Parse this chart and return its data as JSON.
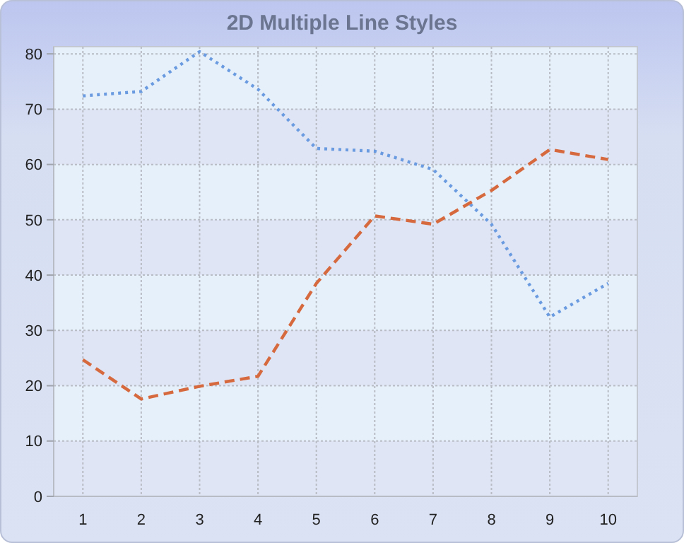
{
  "chart_data": {
    "type": "line",
    "title": "2D Multiple Line Styles",
    "categories": [
      "1",
      "2",
      "3",
      "4",
      "5",
      "6",
      "7",
      "8",
      "9",
      "10"
    ],
    "series": [
      {
        "color": "#6a9be0",
        "line_style": "dotted",
        "values": [
          72.4,
          73.2,
          80.4,
          73.6,
          62.9,
          62.4,
          59.1,
          49.2,
          32.4,
          38.5
        ]
      },
      {
        "color": "#d66a3e",
        "line_style": "dashed",
        "values": [
          24.7,
          17.6,
          19.9,
          21.7,
          38.5,
          50.7,
          49.2,
          55.3,
          62.7,
          60.9
        ]
      }
    ],
    "ylim": [
      0,
      81.3
    ],
    "yticks": [
      0,
      10,
      20,
      30,
      40,
      50,
      60,
      70,
      80
    ],
    "grid": true,
    "marker": "none"
  }
}
